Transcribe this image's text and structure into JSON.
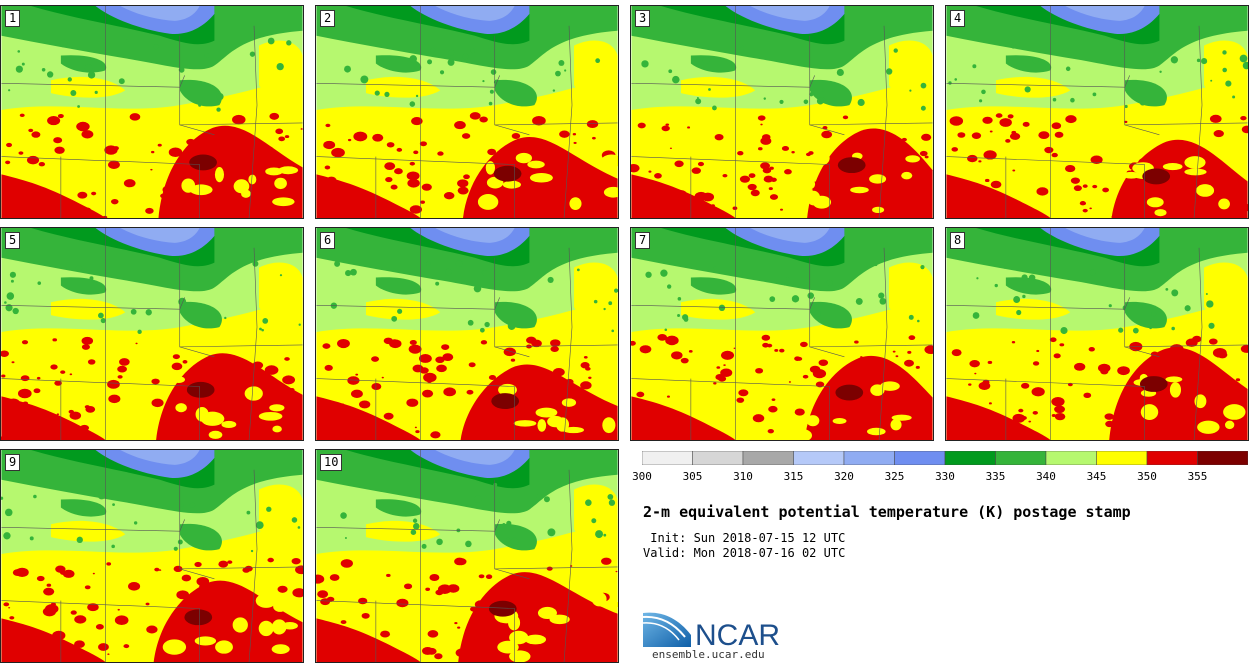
{
  "panels": [
    "1",
    "2",
    "3",
    "4",
    "5",
    "6",
    "7",
    "8",
    "9",
    "10"
  ],
  "colorbar": {
    "ticks": [
      "300",
      "305",
      "310",
      "315",
      "320",
      "325",
      "330",
      "335",
      "340",
      "345",
      "350",
      "355"
    ],
    "colors": [
      "#f0f0f0",
      "#d6d6d6",
      "#a8a8a8",
      "#b5c9f8",
      "#90acf2",
      "#6f8ef0",
      "#019a1e",
      "#35b43a",
      "#b6f86f",
      "#ffff00",
      "#e00000",
      "#7c0000"
    ]
  },
  "title": "2-m equivalent potential temperature (K) postage stamp",
  "init": " Init: Sun 2018-07-15 12 UTC",
  "valid": "Valid: Mon 2018-07-16 02 UTC",
  "logo": {
    "text": "NCAR",
    "url": "ensemble.ucar.edu"
  }
}
